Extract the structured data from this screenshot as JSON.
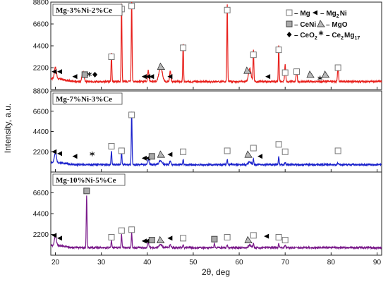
{
  "chart_data": {
    "type": "line",
    "xlabel": "2θ, deg",
    "ylabel": "Intensity, a.u.",
    "xlim": [
      19,
      91
    ],
    "x_ticks": [
      "20",
      "30",
      "40",
      "50",
      "60",
      "70",
      "80",
      "90"
    ],
    "legend": {
      "placement": "top-right",
      "entries": [
        {
          "symbol": "square-open",
          "text": "– Mg"
        },
        {
          "symbol": "triangle-left",
          "text": "– Mg",
          "sub": "2",
          "tail": "Ni"
        },
        {
          "symbol": "square-gray",
          "text": "– CeNi"
        },
        {
          "symbol": "triangle-gray",
          "text": "– MgO"
        },
        {
          "symbol": "diamond",
          "text": "– CeO",
          "sub": "2"
        },
        {
          "symbol": "star",
          "text": "– Ce",
          "sub": "2",
          "tail": "Mg",
          "sub2": "17"
        }
      ]
    },
    "panels": [
      {
        "label": "Mg-3%Ni-2%Ce",
        "color": "#e8201c",
        "y_ticks": [
          "8800",
          "6600",
          "4400",
          "2200"
        ],
        "ylim": [
          0,
          8800
        ],
        "baseline": 800,
        "peaks": [
          {
            "x": 32.2,
            "y": 2900,
            "w": 0.12,
            "marker": "mg"
          },
          {
            "x": 34.4,
            "y": 7800,
            "w": 0.12,
            "marker": "mg"
          },
          {
            "x": 36.6,
            "y": 8200,
            "w": 0.12,
            "marker": "mg"
          },
          {
            "x": 42.9,
            "y": 1500,
            "w": 0.5,
            "marker": "mgo"
          },
          {
            "x": 47.8,
            "y": 3800,
            "w": 0.12,
            "marker": "mg"
          },
          {
            "x": 57.4,
            "y": 7700,
            "w": 0.12,
            "marker": "mg"
          },
          {
            "x": 62.3,
            "y": 1300,
            "w": 0.4,
            "marker": "mgo"
          },
          {
            "x": 63.1,
            "y": 3100,
            "w": 0.12,
            "marker": "mg"
          },
          {
            "x": 68.6,
            "y": 3700,
            "w": 0.12,
            "marker": "mg"
          },
          {
            "x": 70.0,
            "y": 1700,
            "w": 0.15,
            "marker": "mg"
          },
          {
            "x": 72.5,
            "y": 1200,
            "w": 0.15,
            "marker": "mg"
          },
          {
            "x": 81.5,
            "y": 1600,
            "w": 0.15,
            "marker": "mg"
          },
          {
            "x": 20.0,
            "y": 1200,
            "w": 0.3,
            "marker": "mg2ni"
          },
          {
            "x": 26.0,
            "y": 1000,
            "w": 0.3,
            "marker": "ceni"
          },
          {
            "x": 40.2,
            "y": 1100,
            "w": 0.2,
            "marker": "mg2ni"
          },
          {
            "x": 45.0,
            "y": 1100,
            "w": 0.2,
            "marker": "mg2ni"
          }
        ],
        "markers": [
          {
            "type": "triangle-left",
            "x": 19.8,
            "y": 1800
          },
          {
            "type": "triangle-left",
            "x": 21.0,
            "y": 1800
          },
          {
            "type": "triangle-left",
            "x": 24.3,
            "y": 1300
          },
          {
            "type": "square-gray",
            "x": 26.4,
            "y": 1500
          },
          {
            "type": "star",
            "x": 27.4,
            "y": 1400
          },
          {
            "type": "diamond",
            "x": 28.6,
            "y": 1500
          },
          {
            "type": "square-open",
            "x": 32.2,
            "y": 3300
          },
          {
            "type": "square-open",
            "x": 34.4,
            "y": 8100
          },
          {
            "type": "square-open",
            "x": 36.6,
            "y": 8400
          },
          {
            "type": "triangle-left",
            "x": 39.4,
            "y": 1300
          },
          {
            "type": "triangle-left",
            "x": 40.2,
            "y": 1300
          },
          {
            "type": "triangle-left",
            "x": 41.0,
            "y": 1300
          },
          {
            "type": "triangle-gray",
            "x": 43.0,
            "y": 2300
          },
          {
            "type": "triangle-left",
            "x": 45.0,
            "y": 1300
          },
          {
            "type": "square-open",
            "x": 47.8,
            "y": 4200
          },
          {
            "type": "square-open",
            "x": 57.4,
            "y": 8000
          },
          {
            "type": "triangle-gray",
            "x": 61.8,
            "y": 1900
          },
          {
            "type": "square-open",
            "x": 63.1,
            "y": 3500
          },
          {
            "type": "triangle-left",
            "x": 66.3,
            "y": 1300
          },
          {
            "type": "square-open",
            "x": 68.6,
            "y": 4000
          },
          {
            "type": "square-open",
            "x": 70.0,
            "y": 1700
          },
          {
            "type": "square-open",
            "x": 72.5,
            "y": 1800
          },
          {
            "type": "triangle-gray",
            "x": 75.5,
            "y": 1500
          },
          {
            "type": "star",
            "x": 77.6,
            "y": 1000
          },
          {
            "type": "triangle-gray",
            "x": 78.8,
            "y": 1500
          },
          {
            "type": "square-open",
            "x": 81.5,
            "y": 2200
          }
        ]
      },
      {
        "label": "Mg-7%Ni-3%Ce",
        "color": "#1b22cc",
        "y_ticks": [
          "8800",
          "6600",
          "4400",
          "2200"
        ],
        "ylim": [
          0,
          8800
        ],
        "baseline": 800,
        "peaks": [
          {
            "x": 20.0,
            "y": 1000,
            "w": 0.3,
            "marker": "mg2ni"
          },
          {
            "x": 32.2,
            "y": 1500,
            "w": 0.12,
            "marker": "mg"
          },
          {
            "x": 34.4,
            "y": 1400,
            "w": 0.12,
            "marker": "mg"
          },
          {
            "x": 36.6,
            "y": 5700,
            "w": 0.12,
            "marker": "mg"
          },
          {
            "x": 40.2,
            "y": 600,
            "w": 0.2,
            "marker": "mg2ni"
          },
          {
            "x": 42.9,
            "y": 400,
            "w": 0.5,
            "marker": "mgo"
          },
          {
            "x": 45.0,
            "y": 400,
            "w": 0.2,
            "marker": "mg2ni"
          },
          {
            "x": 47.8,
            "y": 600,
            "w": 0.12,
            "marker": "mg"
          },
          {
            "x": 57.4,
            "y": 600,
            "w": 0.12,
            "marker": "mg"
          },
          {
            "x": 62.3,
            "y": 300,
            "w": 0.4,
            "marker": "mgo"
          },
          {
            "x": 63.1,
            "y": 600,
            "w": 0.12,
            "marker": "mg"
          },
          {
            "x": 68.6,
            "y": 900,
            "w": 0.12,
            "marker": "mg"
          },
          {
            "x": 70.0,
            "y": 250,
            "w": 0.15,
            "marker": "mg"
          },
          {
            "x": 81.5,
            "y": 200,
            "w": 0.15,
            "marker": "mg"
          }
        ],
        "markers": [
          {
            "type": "triangle-left",
            "x": 19.8,
            "y": 2200
          },
          {
            "type": "triangle-left",
            "x": 21.0,
            "y": 2000
          },
          {
            "type": "triangle-left",
            "x": 24.3,
            "y": 1700
          },
          {
            "type": "star",
            "x": 28.0,
            "y": 1800
          },
          {
            "type": "square-open",
            "x": 32.2,
            "y": 2800
          },
          {
            "type": "square-open",
            "x": 34.4,
            "y": 2300
          },
          {
            "type": "square-open",
            "x": 36.6,
            "y": 6200
          },
          {
            "type": "triangle-left",
            "x": 39.4,
            "y": 1500
          },
          {
            "type": "triangle-left",
            "x": 40.2,
            "y": 1500
          },
          {
            "type": "square-gray",
            "x": 41.0,
            "y": 1700
          },
          {
            "type": "triangle-gray",
            "x": 43.0,
            "y": 1900
          },
          {
            "type": "triangle-left",
            "x": 45.0,
            "y": 1900
          },
          {
            "type": "square-open",
            "x": 47.8,
            "y": 2200
          },
          {
            "type": "square-open",
            "x": 57.4,
            "y": 2300
          },
          {
            "type": "triangle-gray",
            "x": 62.0,
            "y": 1900
          },
          {
            "type": "square-open",
            "x": 63.1,
            "y": 2600
          },
          {
            "type": "triangle-left",
            "x": 64.6,
            "y": 1700
          },
          {
            "type": "square-open",
            "x": 68.6,
            "y": 3000
          },
          {
            "type": "square-open",
            "x": 70.0,
            "y": 2200
          },
          {
            "type": "square-open",
            "x": 81.5,
            "y": 2300
          }
        ]
      },
      {
        "label": "Mg-10%Ni-5%Ce",
        "color": "#7a1a8a",
        "y_ticks": [
          "6600",
          "4400",
          "2200"
        ],
        "ylim": [
          0,
          8800
        ],
        "baseline": 800,
        "peaks": [
          {
            "x": 20.0,
            "y": 1000,
            "w": 0.3,
            "marker": "mg2ni"
          },
          {
            "x": 26.8,
            "y": 5500,
            "w": 0.12,
            "marker": "ceni"
          },
          {
            "x": 32.2,
            "y": 800,
            "w": 0.12,
            "marker": "mg"
          },
          {
            "x": 34.4,
            "y": 1400,
            "w": 0.12,
            "marker": "mg"
          },
          {
            "x": 36.6,
            "y": 1600,
            "w": 0.12,
            "marker": "mg"
          },
          {
            "x": 40.2,
            "y": 500,
            "w": 0.2,
            "marker": "mg2ni"
          },
          {
            "x": 42.9,
            "y": 300,
            "w": 0.5,
            "marker": "mgo"
          },
          {
            "x": 45.0,
            "y": 300,
            "w": 0.2,
            "marker": "mg2ni"
          },
          {
            "x": 47.8,
            "y": 300,
            "w": 0.12,
            "marker": "mg"
          },
          {
            "x": 54.6,
            "y": 400,
            "w": 0.12,
            "marker": "ceni"
          },
          {
            "x": 57.4,
            "y": 300,
            "w": 0.12,
            "marker": "mg"
          },
          {
            "x": 62.3,
            "y": 300,
            "w": 0.4,
            "marker": "mgo"
          },
          {
            "x": 63.1,
            "y": 500,
            "w": 0.12,
            "marker": "mg"
          },
          {
            "x": 68.6,
            "y": 400,
            "w": 0.12,
            "marker": "mg"
          },
          {
            "x": 70.0,
            "y": 250,
            "w": 0.15,
            "marker": "mg"
          }
        ],
        "markers": [
          {
            "type": "triangle-left",
            "x": 19.8,
            "y": 2100
          },
          {
            "type": "triangle-left",
            "x": 21.0,
            "y": 1800
          },
          {
            "type": "square-gray",
            "x": 26.8,
            "y": 6800
          },
          {
            "type": "square-open",
            "x": 32.2,
            "y": 1900
          },
          {
            "type": "square-open",
            "x": 34.4,
            "y": 2600
          },
          {
            "type": "square-open",
            "x": 36.6,
            "y": 2700
          },
          {
            "type": "triangle-left",
            "x": 39.4,
            "y": 1500
          },
          {
            "type": "triangle-left",
            "x": 40.0,
            "y": 1500
          },
          {
            "type": "square-gray",
            "x": 41.0,
            "y": 1600
          },
          {
            "type": "triangle-gray",
            "x": 42.9,
            "y": 1600
          },
          {
            "type": "triangle-left",
            "x": 45.0,
            "y": 1800
          },
          {
            "type": "square-open",
            "x": 47.8,
            "y": 1800
          },
          {
            "type": "square-gray",
            "x": 54.6,
            "y": 1700
          },
          {
            "type": "square-open",
            "x": 57.4,
            "y": 1900
          },
          {
            "type": "triangle-gray",
            "x": 62.0,
            "y": 1600
          },
          {
            "type": "square-open",
            "x": 63.1,
            "y": 2100
          },
          {
            "type": "triangle-left",
            "x": 66.0,
            "y": 2000
          },
          {
            "type": "square-open",
            "x": 68.6,
            "y": 1900
          },
          {
            "type": "square-open",
            "x": 70.0,
            "y": 1600
          }
        ]
      }
    ]
  }
}
